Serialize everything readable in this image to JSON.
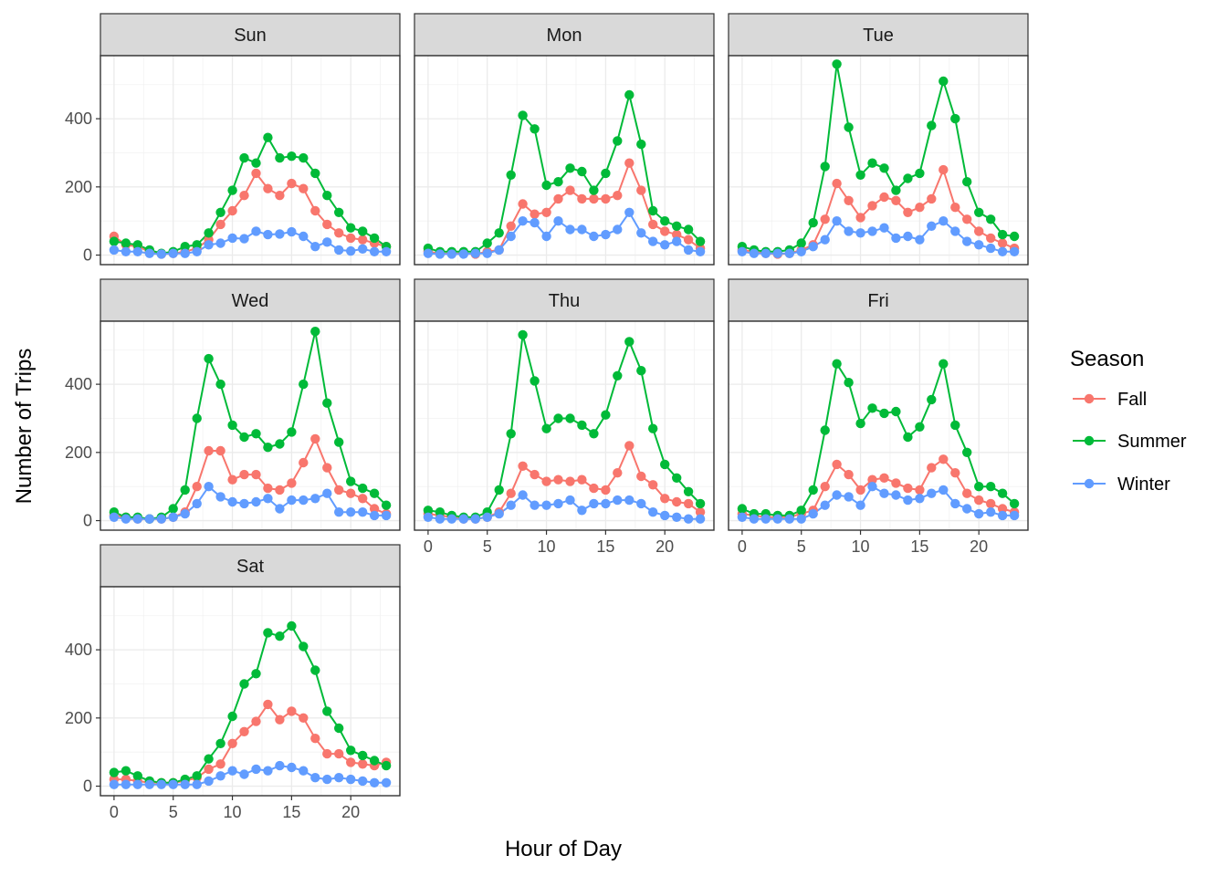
{
  "chart_data": {
    "type": "line",
    "xlabel": "Hour of Day",
    "ylabel": "Number of Trips",
    "xlim": [
      -1.15,
      24.15
    ],
    "ylim": [
      -28,
      585
    ],
    "xticks": [
      0,
      5,
      10,
      15,
      20
    ],
    "yticks": [
      0,
      200,
      400
    ],
    "xtick_labels": [
      "0",
      "5",
      "10",
      "15",
      "20"
    ],
    "ytick_labels": [
      "0",
      "200",
      "400"
    ],
    "grid": true,
    "legend": {
      "title": "Season",
      "placement": "right"
    },
    "x": [
      0,
      1,
      2,
      3,
      4,
      5,
      6,
      7,
      8,
      9,
      10,
      11,
      12,
      13,
      14,
      15,
      16,
      17,
      18,
      19,
      20,
      21,
      22,
      23
    ],
    "series_meta": [
      {
        "name": "Fall",
        "color": "#F8766D"
      },
      {
        "name": "Summer",
        "color": "#00BA38"
      },
      {
        "name": "Winter",
        "color": "#619CFF"
      }
    ],
    "panels": [
      {
        "label": "Sun",
        "series": {
          "Fall": [
            55,
            30,
            25,
            10,
            3,
            5,
            10,
            20,
            45,
            90,
            130,
            175,
            240,
            195,
            175,
            210,
            195,
            130,
            90,
            65,
            50,
            45,
            35,
            25
          ],
          "Summer": [
            40,
            35,
            30,
            15,
            5,
            10,
            25,
            30,
            65,
            125,
            190,
            285,
            270,
            345,
            285,
            290,
            285,
            240,
            175,
            125,
            80,
            70,
            50,
            25
          ],
          "Winter": [
            15,
            10,
            10,
            5,
            3,
            5,
            5,
            10,
            30,
            35,
            50,
            48,
            70,
            60,
            62,
            68,
            55,
            25,
            38,
            15,
            12,
            18,
            10,
            10
          ]
        }
      },
      {
        "label": "Mon",
        "series": {
          "Fall": [
            10,
            5,
            5,
            5,
            3,
            10,
            15,
            85,
            150,
            120,
            125,
            165,
            190,
            165,
            165,
            165,
            175,
            270,
            190,
            90,
            70,
            60,
            45,
            20
          ],
          "Summer": [
            20,
            10,
            10,
            10,
            10,
            35,
            65,
            235,
            410,
            370,
            205,
            215,
            255,
            245,
            190,
            240,
            335,
            470,
            325,
            130,
            100,
            85,
            75,
            40
          ],
          "Winter": [
            5,
            3,
            3,
            3,
            5,
            5,
            15,
            55,
            100,
            95,
            55,
            100,
            75,
            75,
            55,
            60,
            75,
            125,
            65,
            40,
            30,
            40,
            15,
            10
          ]
        }
      },
      {
        "label": "Tue",
        "series": {
          "Fall": [
            15,
            10,
            5,
            3,
            5,
            15,
            30,
            105,
            210,
            160,
            110,
            145,
            170,
            160,
            125,
            140,
            165,
            250,
            140,
            105,
            70,
            50,
            35,
            20
          ],
          "Summer": [
            25,
            15,
            10,
            10,
            15,
            35,
            95,
            260,
            560,
            375,
            235,
            270,
            255,
            190,
            225,
            240,
            380,
            510,
            400,
            215,
            125,
            105,
            60,
            55
          ],
          "Winter": [
            10,
            5,
            5,
            5,
            5,
            10,
            25,
            45,
            100,
            70,
            65,
            70,
            80,
            50,
            55,
            45,
            85,
            100,
            70,
            40,
            30,
            20,
            10,
            10
          ]
        }
      },
      {
        "label": "Wed",
        "series": {
          "Fall": [
            15,
            10,
            5,
            5,
            5,
            10,
            25,
            100,
            205,
            205,
            120,
            135,
            135,
            95,
            90,
            110,
            170,
            240,
            155,
            90,
            80,
            65,
            35,
            20
          ],
          "Summer": [
            25,
            10,
            10,
            5,
            10,
            35,
            90,
            300,
            475,
            400,
            280,
            245,
            255,
            215,
            225,
            260,
            400,
            555,
            345,
            230,
            115,
            95,
            80,
            45
          ],
          "Winter": [
            10,
            5,
            5,
            5,
            5,
            10,
            20,
            50,
            100,
            70,
            55,
            50,
            55,
            65,
            35,
            60,
            60,
            65,
            80,
            25,
            25,
            25,
            15,
            15
          ]
        }
      },
      {
        "label": "Thu",
        "series": {
          "Fall": [
            20,
            15,
            10,
            5,
            5,
            10,
            25,
            80,
            160,
            135,
            115,
            120,
            115,
            120,
            95,
            90,
            140,
            220,
            130,
            105,
            65,
            55,
            50,
            25
          ],
          "Summer": [
            30,
            25,
            15,
            10,
            10,
            25,
            90,
            255,
            545,
            410,
            270,
            300,
            300,
            280,
            255,
            310,
            425,
            525,
            440,
            270,
            165,
            125,
            85,
            50
          ],
          "Winter": [
            10,
            5,
            5,
            5,
            5,
            10,
            20,
            45,
            75,
            45,
            45,
            50,
            60,
            30,
            50,
            50,
            60,
            60,
            50,
            25,
            15,
            10,
            5,
            5
          ]
        }
      },
      {
        "label": "Fri",
        "series": {
          "Fall": [
            20,
            15,
            10,
            10,
            10,
            20,
            30,
            100,
            165,
            135,
            90,
            120,
            125,
            110,
            95,
            90,
            155,
            180,
            140,
            80,
            60,
            50,
            35,
            25
          ],
          "Summer": [
            35,
            20,
            20,
            15,
            15,
            30,
            90,
            265,
            460,
            405,
            285,
            330,
            315,
            320,
            245,
            275,
            355,
            460,
            280,
            200,
            100,
            100,
            80,
            50
          ],
          "Winter": [
            10,
            5,
            5,
            5,
            5,
            5,
            20,
            45,
            75,
            70,
            45,
            100,
            80,
            75,
            60,
            65,
            80,
            90,
            50,
            35,
            20,
            25,
            15,
            15
          ]
        }
      },
      {
        "label": "Sat",
        "series": {
          "Fall": [
            20,
            20,
            15,
            10,
            10,
            10,
            15,
            25,
            50,
            65,
            125,
            160,
            190,
            240,
            195,
            220,
            200,
            140,
            95,
            95,
            70,
            65,
            60,
            70
          ],
          "Summer": [
            40,
            45,
            30,
            15,
            10,
            10,
            20,
            30,
            80,
            125,
            205,
            300,
            330,
            450,
            440,
            470,
            410,
            340,
            220,
            170,
            105,
            90,
            75,
            60
          ],
          "Winter": [
            5,
            5,
            5,
            5,
            5,
            5,
            5,
            5,
            15,
            30,
            45,
            35,
            50,
            45,
            60,
            55,
            45,
            25,
            20,
            25,
            20,
            15,
            10,
            10
          ]
        }
      }
    ]
  }
}
